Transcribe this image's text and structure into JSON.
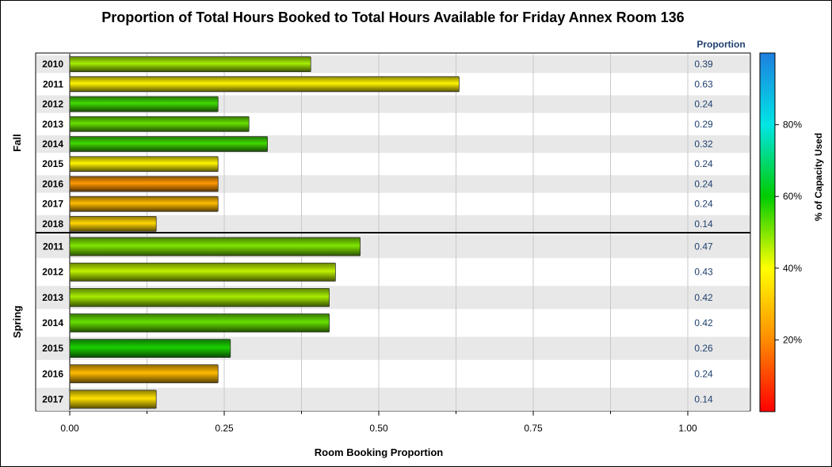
{
  "colors": {
    "band_shade": "#e8e8e8",
    "gridline": "#c8c8c8",
    "value_text": "#1f3f6e",
    "ramp": [
      "#ff0000",
      "#ff8c00",
      "#ffff00",
      "#00cc00",
      "#00e5e5",
      "#1e7fe0"
    ]
  },
  "chart_data": {
    "type": "bar",
    "orientation": "horizontal",
    "title": "Proportion of Total Hours Booked to Total Hours Available for Friday Annex Room 136",
    "xlabel": "Room Booking Proportion",
    "xlim": [
      0,
      1.1
    ],
    "x_ticks": [
      0,
      0.25,
      0.5,
      0.75,
      1.0
    ],
    "x_tick_labels": [
      "0.00",
      "0.25",
      "0.50",
      "0.75",
      "1.00"
    ],
    "value_column_header": "Proportion",
    "grid": "vertical",
    "colorbar": {
      "label": "% of Capacity Used",
      "range": [
        0,
        100
      ],
      "ticks": [
        "20%",
        "40%",
        "60%",
        "80%"
      ],
      "tick_values": [
        20,
        40,
        60,
        80
      ],
      "placement": "right"
    },
    "groups": [
      {
        "name": "Fall",
        "categories": [
          "2010",
          "2011",
          "2012",
          "2013",
          "2014",
          "2015",
          "2016",
          "2017",
          "2018"
        ],
        "values": [
          0.39,
          0.63,
          0.24,
          0.29,
          0.32,
          0.24,
          0.24,
          0.24,
          0.14
        ],
        "labels": [
          "0.39",
          "0.63",
          "0.24",
          "0.29",
          "0.32",
          "0.24",
          "0.24",
          "0.24",
          "0.14"
        ],
        "capacity_pct": [
          47,
          38,
          55,
          52,
          55,
          38,
          22,
          28,
          33
        ]
      },
      {
        "name": "Spring",
        "categories": [
          "2011",
          "2012",
          "2013",
          "2014",
          "2015",
          "2016",
          "2017"
        ],
        "values": [
          0.47,
          0.43,
          0.42,
          0.42,
          0.26,
          0.24,
          0.14
        ],
        "labels": [
          "0.47",
          "0.43",
          "0.42",
          "0.42",
          "0.26",
          "0.24",
          "0.14"
        ],
        "capacity_pct": [
          50,
          45,
          47,
          52,
          58,
          28,
          35
        ]
      }
    ]
  }
}
